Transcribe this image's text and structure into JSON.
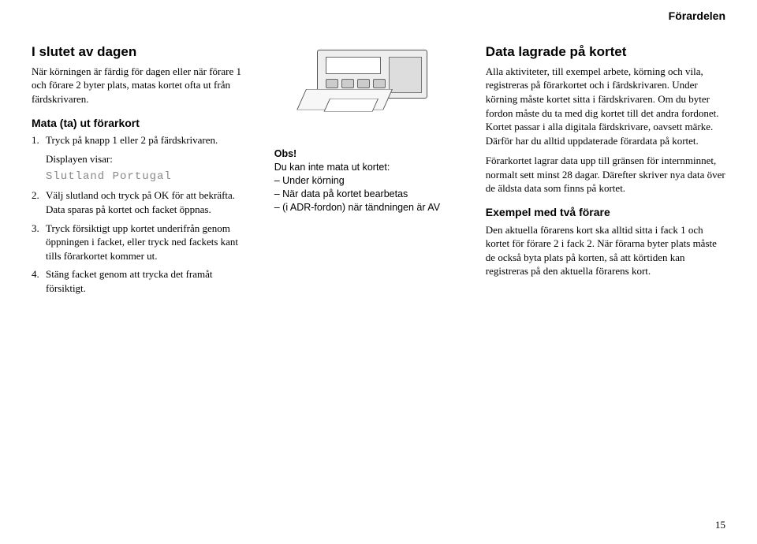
{
  "header": {
    "section": "Förardelen"
  },
  "col1": {
    "h2": "I slutet av dagen",
    "intro": "När körningen är färdig för dagen eller när förare 1 och förare 2 byter plats, matas kortet ofta ut från färdskrivaren.",
    "h3": "Mata (ta) ut förarkort",
    "item1_num": "1.",
    "item1": "Tryck på knapp 1 eller 2 på färdskrivaren.",
    "display_label": "Displayen visar:",
    "display_text": "Slutland Portugal",
    "item2_num": "2.",
    "item2": "Välj slutland och tryck på OK för att bekräfta. Data sparas på kortet och facket öppnas.",
    "item3_num": "3.",
    "item3": "Tryck försiktigt upp kortet underifrån genom öppningen i facket, eller tryck ned fackets kant tills förarkortet kommer ut.",
    "item4_num": "4.",
    "item4": "Stäng facket genom att trycka det framåt försiktigt."
  },
  "col2": {
    "obs_title": "Obs!",
    "obs_line1": "Du kan inte mata ut kortet:",
    "obs_line2": "– Under körning",
    "obs_line3": "– När data på kortet bearbetas",
    "obs_line4": "– (i ADR-fordon) när tändningen är AV"
  },
  "col3": {
    "h2": "Data lagrade på kortet",
    "p1": "Alla aktiviteter, till exempel arbete, körning och vila, registreras på förarkortet och i färdskrivaren. Under körning måste kortet sitta i färdskrivaren. Om du byter fordon måste du ta med dig kortet till det andra fordonet. Kortet passar i alla digitala färdskrivare, oavsett märke. Därför har du alltid uppdaterade förardata på kortet.",
    "p2": "Förarkortet lagrar data upp till gränsen för internminnet, normalt sett minst 28 dagar. Därefter skriver nya data över de äldsta data som finns på kortet.",
    "h3": "Exempel med två förare",
    "p3": "Den aktuella förarens kort ska alltid sitta i fack 1 och kortet för förare 2 i fack 2. När förarna byter plats måste de också byta plats på korten, så att körtiden kan registreras på den aktuella förarens kort."
  },
  "page_number": "15"
}
